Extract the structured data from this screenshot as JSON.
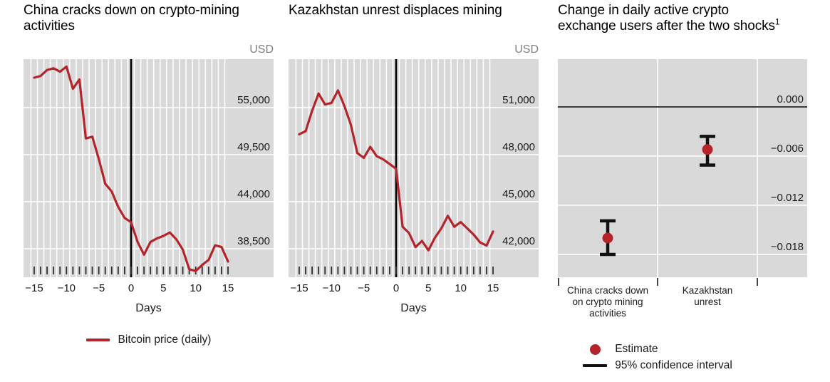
{
  "colors": {
    "red": "#b5242a",
    "plot_bg": "#d9d9d9",
    "gridline": "#ffffff",
    "event_line": "#000000",
    "zero_line": "#3a3a3a",
    "error_bar": "#111111",
    "tick": "#2f2f2f",
    "text": "#1a1a1a",
    "muted": "#808080"
  },
  "chart_data": [
    {
      "type": "line",
      "title": "China cracks down on crypto-mining activities",
      "title_lines": [
        "China cracks down on crypto-mining",
        "activities"
      ],
      "unit_label": "USD",
      "xlabel": "Days",
      "x": [
        -15,
        -14,
        -13,
        -12,
        -11,
        -10,
        -9,
        -8,
        -7,
        -6,
        -5,
        -4,
        -3,
        -2,
        -1,
        0,
        1,
        2,
        3,
        4,
        5,
        6,
        7,
        8,
        9,
        10,
        11,
        12,
        13,
        14,
        15
      ],
      "series": [
        {
          "name": "Bitcoin price (daily)",
          "color": "#b5242a",
          "values": [
            58500,
            58700,
            59400,
            59600,
            59200,
            59800,
            57200,
            58300,
            51400,
            51600,
            49000,
            46100,
            45200,
            43400,
            42100,
            41600,
            39300,
            37800,
            39300,
            39700,
            40000,
            40400,
            39600,
            38400,
            36100,
            35900,
            36600,
            37200,
            38900,
            38700,
            37000
          ]
        }
      ],
      "xticks": [
        -15,
        -10,
        -5,
        0,
        5,
        10,
        15
      ],
      "xtick_labels": [
        "−15",
        "−10",
        "−5",
        "0",
        "5",
        "10",
        "15"
      ],
      "yticks": [
        55000,
        49500,
        44000,
        38500
      ],
      "ytick_labels": [
        "55,000",
        "49,500",
        "44,000",
        "38,500"
      ],
      "event_line_x": 0,
      "ylim": [
        35200,
        60650
      ],
      "grid": true,
      "legend_position": "bottom"
    },
    {
      "type": "line",
      "title": "Kazakhstan unrest displaces mining",
      "title_lines": [
        "Kazakhstan unrest displaces mining"
      ],
      "unit_label": "USD",
      "xlabel": "Days",
      "x": [
        -15,
        -14,
        -13,
        -12,
        -11,
        -10,
        -9,
        -8,
        -7,
        -6,
        -5,
        -4,
        -3,
        -2,
        -1,
        0,
        1,
        2,
        3,
        4,
        5,
        6,
        7,
        8,
        9,
        10,
        11,
        12,
        13,
        14,
        15
      ],
      "series": [
        {
          "name": "Bitcoin price (daily)",
          "color": "#b5242a",
          "values": [
            49300,
            49500,
            50800,
            51900,
            51200,
            51300,
            52100,
            51100,
            49900,
            48100,
            47800,
            48500,
            47900,
            47700,
            47400,
            47100,
            43400,
            43000,
            42100,
            42500,
            41900,
            42700,
            43300,
            44100,
            43400,
            43700,
            43300,
            42900,
            42400,
            42200,
            43100
          ]
        }
      ],
      "xticks": [
        -15,
        -10,
        -5,
        0,
        5,
        10,
        15
      ],
      "xtick_labels": [
        "−15",
        "−10",
        "−5",
        "0",
        "5",
        "10",
        "15"
      ],
      "yticks": [
        51000,
        48000,
        45000,
        42000
      ],
      "ytick_labels": [
        "51,000",
        "48,000",
        "45,000",
        "42,000"
      ],
      "event_line_x": 0,
      "ylim": [
        40250,
        54100
      ],
      "grid": true,
      "legend_position": "none"
    },
    {
      "type": "scatter",
      "title": "Change in daily active crypto exchange users after the two shocks",
      "title_lines": [
        "Change in daily active crypto",
        "exchange users after the two shocks"
      ],
      "title_superscript": "1",
      "categories": [
        "China cracks down on crypto mining activities",
        "Kazakhstan unrest"
      ],
      "points": [
        {
          "category": "China cracks down on crypto mining activities",
          "estimate": -0.016,
          "ci_high": -0.0139,
          "ci_low": -0.018
        },
        {
          "category": "Kazakhstan unrest",
          "estimate": -0.0052,
          "ci_high": -0.0036,
          "ci_low": -0.0071
        }
      ],
      "yticks": [
        0,
        -0.006,
        -0.012,
        -0.018
      ],
      "ytick_labels": [
        "0.000",
        "−0.006",
        "−0.012",
        "−0.018"
      ],
      "zero_line": true,
      "ylim": [
        -0.0207,
        0.0058
      ],
      "grid": true,
      "legend": [
        {
          "marker": "dot",
          "label": "Estimate"
        },
        {
          "marker": "line",
          "label": "95% confidence interval"
        }
      ]
    }
  ]
}
